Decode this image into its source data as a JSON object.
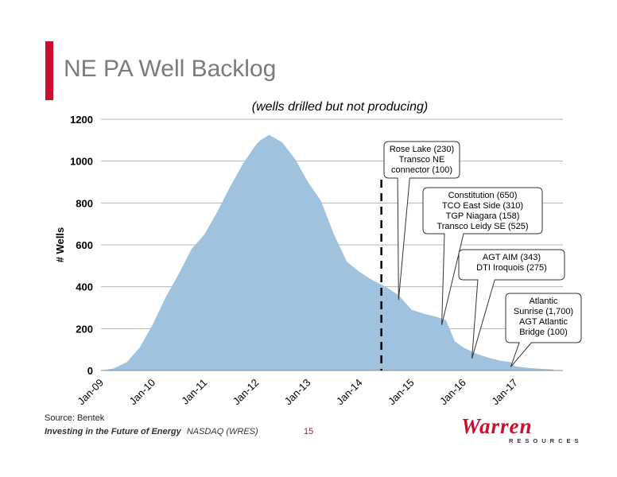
{
  "slide": {
    "title": "NE PA Well Backlog",
    "source": "Source: Bentek",
    "footer_tagline": "Investing in the Future of Energy",
    "footer_ticker": "NASDAQ (WRES)",
    "page_number": "15",
    "logo_word": "Warren",
    "logo_subtext": "RESOURCES"
  },
  "colors": {
    "accent": "#c8102e",
    "area": "#9fc3df",
    "title": "#7b7b7b"
  },
  "chart_data": {
    "type": "area",
    "title": "(wells drilled but not producing)",
    "ylabel": "# Wells",
    "xlabel": "",
    "ylim": [
      0,
      1200
    ],
    "yticks": [
      "0",
      "200",
      "400",
      "600",
      "800",
      "1000",
      "1200"
    ],
    "xticks": [
      "Jan-09",
      "Jan-10",
      "Jan-11",
      "Jan-12",
      "Jan-13",
      "Jan-14",
      "Jan-15",
      "Jan-16",
      "Jan-17"
    ],
    "grid": true,
    "x_start": "Jan-09",
    "x": [
      "2009-01",
      "2009-04",
      "2009-07",
      "2009-10",
      "2010-01",
      "2010-04",
      "2010-07",
      "2010-10",
      "2011-01",
      "2011-04",
      "2011-07",
      "2011-10",
      "2012-01",
      "2012-02",
      "2012-04",
      "2012-07",
      "2012-10",
      "2013-01",
      "2013-04",
      "2013-07",
      "2013-10",
      "2014-01",
      "2014-04",
      "2014-07",
      "2014-10",
      "2015-01",
      "2015-04",
      "2015-07",
      "2015-09",
      "2015-11",
      "2016-01",
      "2016-04",
      "2016-07",
      "2016-10",
      "2016-12",
      "2017-01",
      "2017-04",
      "2017-07",
      "2017-10"
    ],
    "values": [
      0,
      10,
      40,
      110,
      220,
      350,
      460,
      580,
      650,
      760,
      880,
      990,
      1080,
      1100,
      1125,
      1090,
      1010,
      900,
      810,
      650,
      520,
      470,
      430,
      400,
      360,
      290,
      270,
      255,
      240,
      140,
      110,
      80,
      60,
      45,
      40,
      20,
      12,
      8,
      5
    ],
    "marker_line": {
      "x": "2014-06",
      "style": "dashed"
    },
    "annotations": [
      {
        "lines": [
          "Rose Lake (230)",
          "Transco NE",
          "connector (100)"
        ],
        "pointer_x": "2014-10"
      },
      {
        "lines": [
          "Constitution (650)",
          "TCO East Side (310)",
          "TGP Niagara (158)",
          "Transco Leidy SE (525)"
        ],
        "pointer_x": "2015-08"
      },
      {
        "lines": [
          "AGT AIM (343)",
          "DTI Iroquois (275)"
        ],
        "pointer_x": "2016-03"
      },
      {
        "lines": [
          "Atlantic",
          "Sunrise (1,700)",
          "AGT Atlantic",
          "Bridge (100)"
        ],
        "pointer_x": "2016-12"
      }
    ]
  }
}
